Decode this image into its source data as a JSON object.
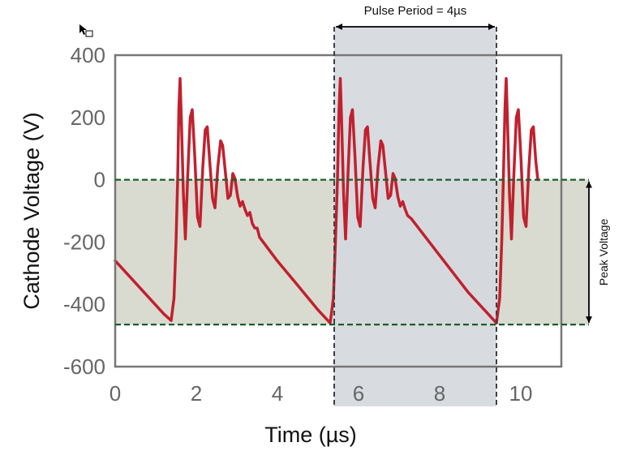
{
  "cursor_icon": "arrow-pointer-icon",
  "chart_data": {
    "type": "line",
    "xlabel": "Time (µs)",
    "ylabel": "Cathode Voltage (V)",
    "xlim": [
      0,
      11
    ],
    "ylim": [
      -600,
      400
    ],
    "x_ticks": [
      0,
      2,
      4,
      6,
      8,
      10
    ],
    "y_ticks": [
      400,
      200,
      0,
      -200,
      -400,
      -600
    ],
    "grid": false,
    "colors": {
      "series": "#c1202e",
      "pulse_band": "#d5d9dd",
      "peak_band": "#d9dbd0",
      "reference_line": "#1d5e2a",
      "period_line": "#3b4148",
      "frame": "#777777",
      "tick_text": "#666666"
    },
    "series": [
      {
        "values": [
          [
            0.0,
            -260
          ],
          [
            0.4,
            -317
          ],
          [
            0.8,
            -374
          ],
          [
            1.2,
            -431
          ],
          [
            1.38,
            -452
          ],
          [
            1.45,
            -380
          ],
          [
            1.5,
            -200
          ],
          [
            1.54,
            0
          ],
          [
            1.57,
            230
          ],
          [
            1.6,
            325
          ],
          [
            1.63,
            200
          ],
          [
            1.68,
            -40
          ],
          [
            1.73,
            -190
          ],
          [
            1.79,
            20
          ],
          [
            1.85,
            200
          ],
          [
            1.9,
            225
          ],
          [
            1.96,
            80
          ],
          [
            2.03,
            -120
          ],
          [
            2.09,
            -150
          ],
          [
            2.16,
            40
          ],
          [
            2.22,
            160
          ],
          [
            2.27,
            170
          ],
          [
            2.33,
            60
          ],
          [
            2.4,
            -60
          ],
          [
            2.46,
            -90
          ],
          [
            2.53,
            40
          ],
          [
            2.6,
            125
          ],
          [
            2.65,
            110
          ],
          [
            2.72,
            20
          ],
          [
            2.78,
            -60
          ],
          [
            2.84,
            -50
          ],
          [
            2.9,
            20
          ],
          [
            2.95,
            5
          ],
          [
            3.02,
            -55
          ],
          [
            3.08,
            -85
          ],
          [
            3.14,
            -70
          ],
          [
            3.2,
            -95
          ],
          [
            3.26,
            -115
          ],
          [
            3.32,
            -105
          ],
          [
            3.38,
            -140
          ],
          [
            3.44,
            -155
          ],
          [
            3.5,
            -155
          ],
          [
            3.56,
            -185
          ],
          [
            3.62,
            -195
          ],
          [
            4.0,
            -261
          ],
          [
            4.5,
            -339
          ],
          [
            5.0,
            -418
          ],
          [
            5.3,
            -460
          ],
          [
            5.38,
            -380
          ],
          [
            5.43,
            -200
          ],
          [
            5.48,
            0
          ],
          [
            5.52,
            230
          ],
          [
            5.55,
            325
          ],
          [
            5.58,
            200
          ],
          [
            5.63,
            -40
          ],
          [
            5.68,
            -190
          ],
          [
            5.74,
            20
          ],
          [
            5.8,
            200
          ],
          [
            5.85,
            225
          ],
          [
            5.91,
            80
          ],
          [
            5.98,
            -120
          ],
          [
            6.04,
            -150
          ],
          [
            6.11,
            40
          ],
          [
            6.17,
            160
          ],
          [
            6.22,
            170
          ],
          [
            6.28,
            60
          ],
          [
            6.35,
            -60
          ],
          [
            6.41,
            -90
          ],
          [
            6.48,
            40
          ],
          [
            6.55,
            125
          ],
          [
            6.6,
            110
          ],
          [
            6.67,
            20
          ],
          [
            6.73,
            -60
          ],
          [
            6.79,
            -50
          ],
          [
            6.85,
            20
          ],
          [
            6.9,
            5
          ],
          [
            6.97,
            -55
          ],
          [
            7.03,
            -85
          ],
          [
            7.09,
            -70
          ],
          [
            7.15,
            -95
          ],
          [
            7.21,
            -115
          ],
          [
            7.3,
            -125
          ],
          [
            8.0,
            -243
          ],
          [
            8.7,
            -361
          ],
          [
            9.4,
            -460
          ],
          [
            9.48,
            -380
          ],
          [
            9.53,
            -200
          ],
          [
            9.57,
            0
          ],
          [
            9.61,
            230
          ],
          [
            9.64,
            325
          ],
          [
            9.67,
            200
          ],
          [
            9.72,
            -40
          ],
          [
            9.77,
            -190
          ],
          [
            9.83,
            20
          ],
          [
            9.89,
            200
          ],
          [
            9.94,
            225
          ],
          [
            10.0,
            80
          ],
          [
            10.07,
            -120
          ],
          [
            10.13,
            -150
          ],
          [
            10.2,
            40
          ],
          [
            10.26,
            160
          ],
          [
            10.31,
            170
          ],
          [
            10.37,
            60
          ],
          [
            10.42,
            0
          ]
        ]
      }
    ],
    "annotations": {
      "pulse_period_label": "Pulse Period = 4µs",
      "pulse_period_range": [
        5.4,
        9.4
      ],
      "peak_voltage_label": "Peak Voltage",
      "peak_range_v": [
        -465,
        0
      ]
    }
  }
}
